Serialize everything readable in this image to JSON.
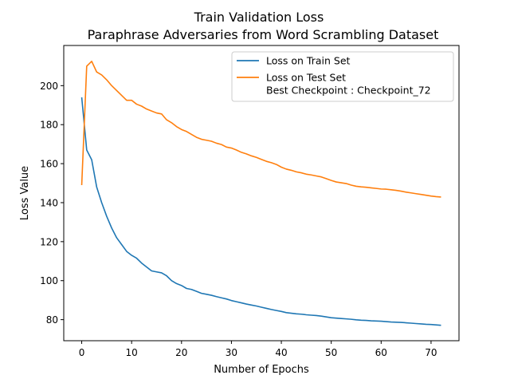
{
  "chart_data": {
    "type": "line",
    "title": "Train Validation Loss",
    "subtitle": "Paraphrase Adversaries from Word Scrambling Dataset",
    "xlabel": "Number of Epochs",
    "ylabel": "Loss Value",
    "xlim": [
      -3.6,
      75.6
    ],
    "ylim": [
      69.2,
      220.6
    ],
    "xticks": [
      0,
      10,
      20,
      30,
      40,
      50,
      60,
      70
    ],
    "yticks": [
      80,
      100,
      120,
      140,
      160,
      180,
      200
    ],
    "grid": false,
    "legend_position": "top-right",
    "x": [
      0,
      1,
      2,
      3,
      4,
      5,
      6,
      7,
      8,
      9,
      10,
      11,
      12,
      13,
      14,
      15,
      16,
      17,
      18,
      19,
      20,
      21,
      22,
      23,
      24,
      25,
      26,
      27,
      28,
      29,
      30,
      31,
      32,
      33,
      34,
      35,
      36,
      37,
      38,
      39,
      40,
      41,
      42,
      43,
      44,
      45,
      46,
      47,
      48,
      49,
      50,
      51,
      52,
      53,
      54,
      55,
      56,
      57,
      58,
      59,
      60,
      61,
      62,
      63,
      64,
      65,
      66,
      67,
      68,
      69,
      70,
      71,
      72
    ],
    "series": [
      {
        "name": "Loss on Train Set",
        "color": "#1f77b4",
        "values": [
          194,
          167,
          162,
          148,
          140,
          133,
          127,
          122,
          118.5,
          115,
          113,
          111.5,
          109,
          107,
          105,
          104.5,
          104,
          102.5,
          100,
          98.5,
          97.5,
          96,
          95.5,
          94.5,
          93.5,
          93,
          92.5,
          91.8,
          91.2,
          90.6,
          89.8,
          89.2,
          88.6,
          88,
          87.5,
          87,
          86.4,
          85.8,
          85.2,
          84.7,
          84.2,
          83.6,
          83.3,
          83,
          82.8,
          82.5,
          82.3,
          82.1,
          81.8,
          81.4,
          81,
          80.8,
          80.6,
          80.4,
          80.2,
          79.9,
          79.7,
          79.6,
          79.4,
          79.3,
          79.2,
          79,
          78.8,
          78.7,
          78.6,
          78.4,
          78.2,
          78,
          77.8,
          77.6,
          77.5,
          77.3,
          77.1
        ]
      },
      {
        "name": "Loss on Test Set\nBest Checkpoint : Checkpoint_72",
        "color": "#ff7f0e",
        "values": [
          149,
          210,
          212.5,
          207,
          205.5,
          203,
          200,
          197.5,
          195,
          192.5,
          192.5,
          190.5,
          189.5,
          188,
          187,
          186,
          185.5,
          182.5,
          181,
          179,
          177.5,
          176.5,
          175,
          173.5,
          172.5,
          172,
          171.5,
          170.5,
          169.8,
          168.5,
          168,
          167,
          165.8,
          165,
          164,
          163.2,
          162.2,
          161.2,
          160.5,
          159.6,
          158.2,
          157.2,
          156.6,
          155.8,
          155.3,
          154.6,
          154.2,
          153.7,
          153.2,
          152.3,
          151.4,
          150.6,
          150.2,
          149.8,
          149,
          148.4,
          148.1,
          147.9,
          147.6,
          147.3,
          147,
          146.9,
          146.6,
          146.3,
          145.9,
          145.4,
          145,
          144.6,
          144.2,
          143.8,
          143.4,
          143.1,
          142.9
        ]
      }
    ]
  }
}
